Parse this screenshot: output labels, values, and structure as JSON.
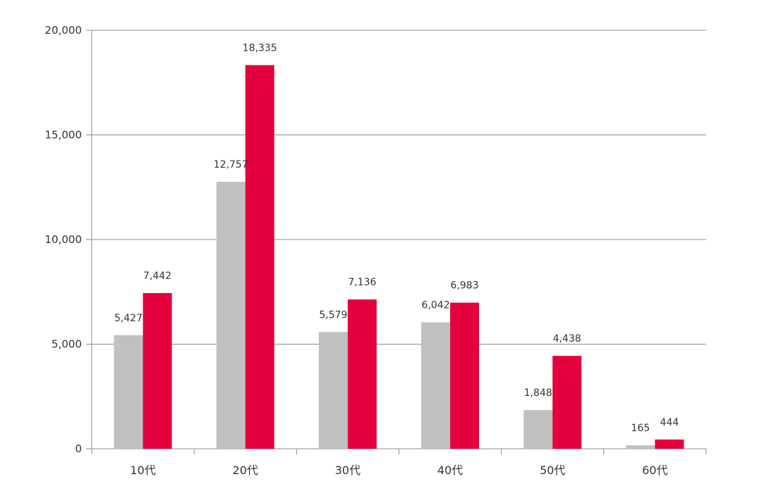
{
  "chart_data": {
    "type": "bar",
    "categories": [
      "10代",
      "20代",
      "30代",
      "40代",
      "50代",
      "60代"
    ],
    "series": [
      {
        "values": [
          5427,
          12757,
          5579,
          6042,
          1848,
          165
        ],
        "labels": [
          "5,427",
          "12,757",
          "5,579",
          "6,042",
          "1,848",
          "165"
        ],
        "color": "#c0c0c0"
      },
      {
        "values": [
          7442,
          18335,
          7136,
          6983,
          4438,
          444
        ],
        "labels": [
          "7,442",
          "18,335",
          "7,136",
          "6,983",
          "4,438",
          "444"
        ],
        "color": "#e4003c"
      }
    ],
    "y_ticks": [
      "0",
      "5,000",
      "10,000",
      "15,000",
      "20,000"
    ],
    "ylim": [
      0,
      20000
    ],
    "grid": true,
    "legend": "none"
  }
}
